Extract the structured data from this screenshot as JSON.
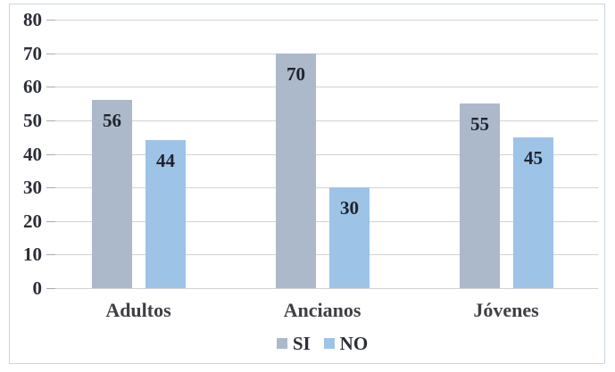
{
  "chart_data": {
    "type": "bar",
    "title": "",
    "xlabel": "",
    "ylabel": "",
    "categories": [
      "Adultos",
      "Ancianos",
      "Jóvenes"
    ],
    "series": [
      {
        "name": "SI",
        "color": "#acb9ca",
        "values": [
          56,
          70,
          55
        ]
      },
      {
        "name": "NO",
        "color": "#9dc3e6",
        "values": [
          44,
          30,
          45
        ]
      }
    ],
    "ylim": [
      0,
      80
    ],
    "yticks": [
      0,
      10,
      20,
      30,
      40,
      50,
      60,
      70,
      80
    ],
    "grid": true,
    "legend_position": "bottom",
    "data_labels": "inside-top"
  },
  "colors": {
    "si_bar": "#acb9ca",
    "no_bar": "#9dc3e6",
    "gridline": "#d2d2d2",
    "tick": "#a9a9a9",
    "frame_border": "#c9d5e4",
    "value_text": "#20242e",
    "axis_text": "#2b2e37",
    "category_text": "#3d3f44"
  }
}
